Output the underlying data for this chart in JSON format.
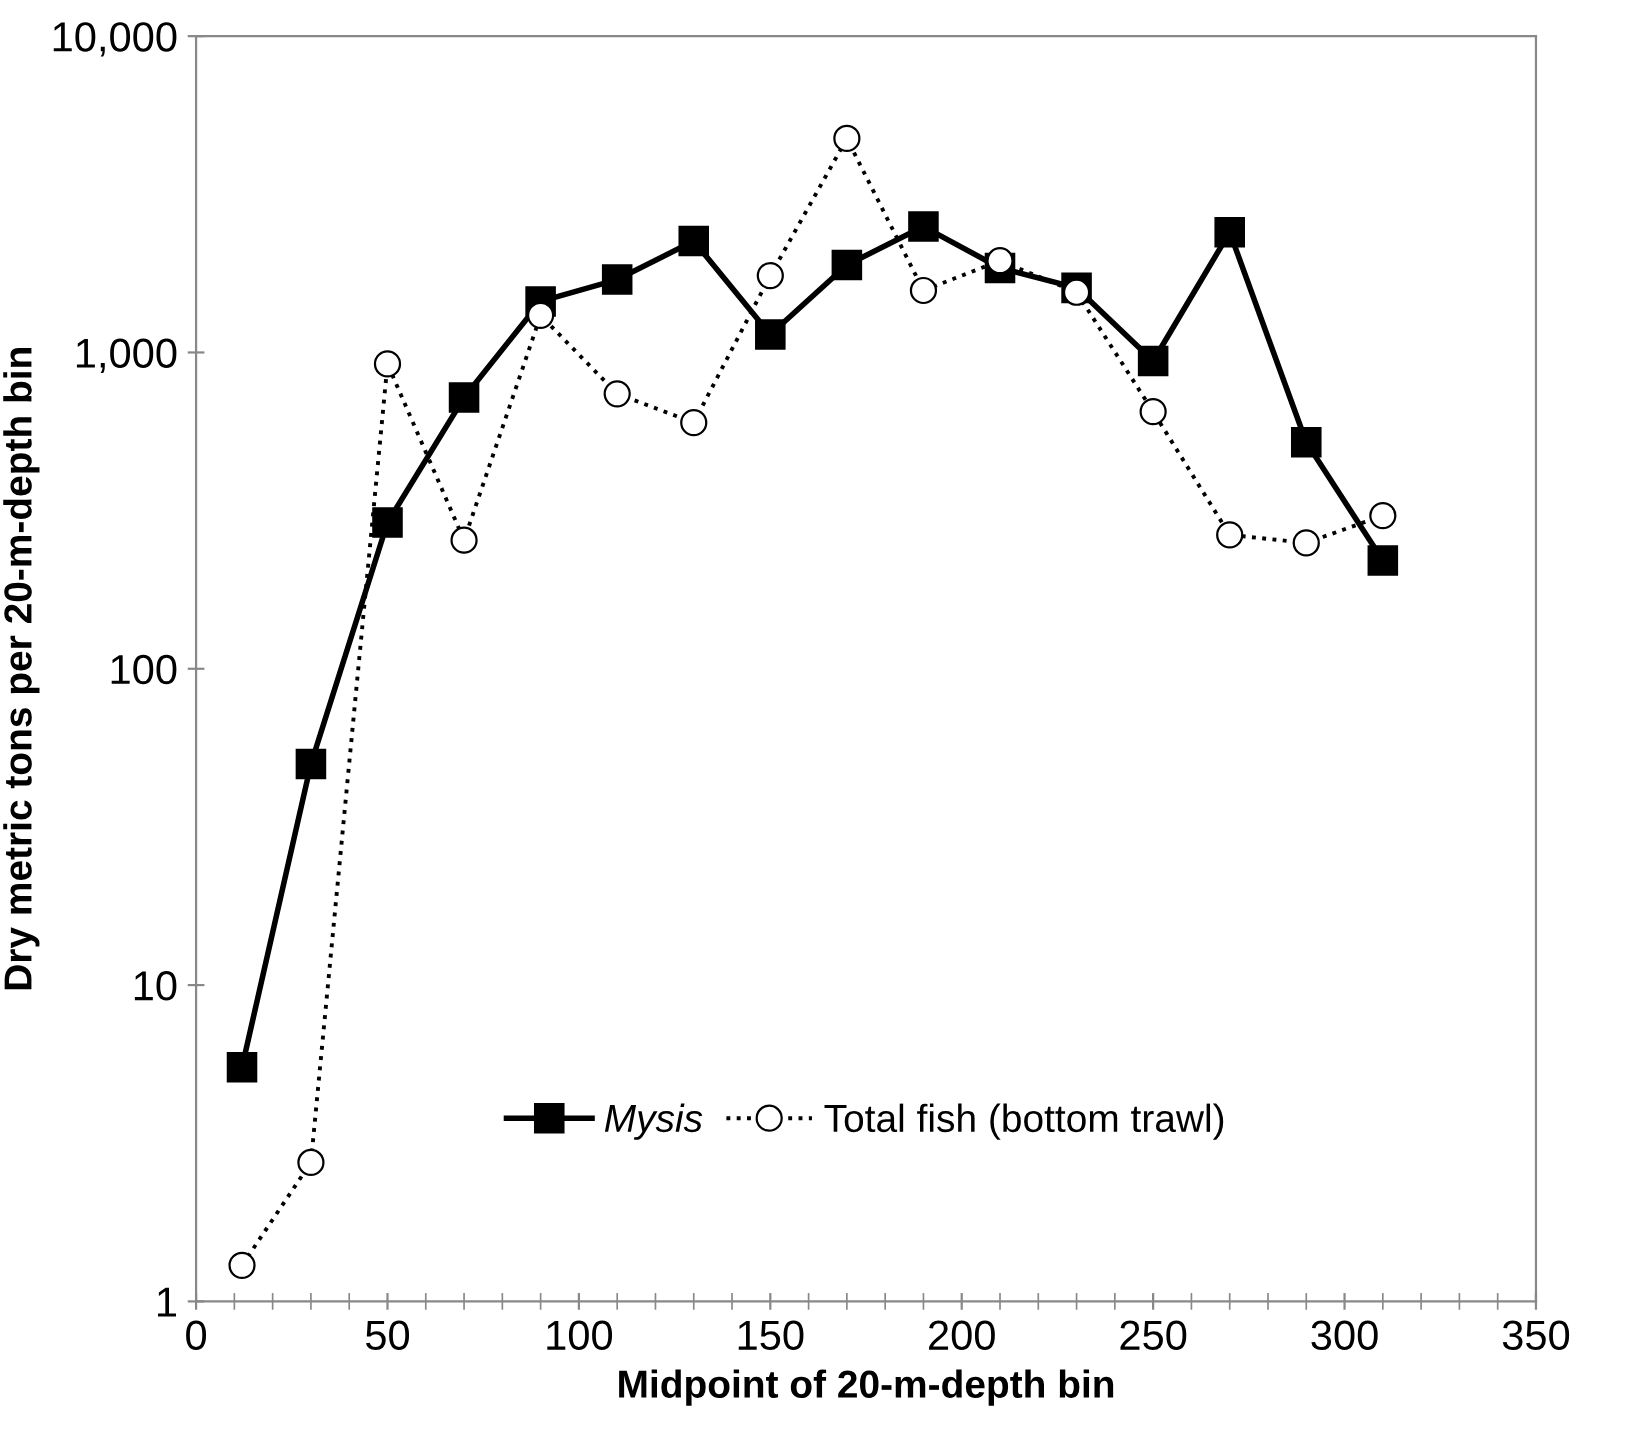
{
  "chart_data": {
    "type": "line",
    "xlabel": "Midpoint of 20-m-depth bin",
    "ylabel": "Dry metric tons per 20-m-depth bin",
    "x": [
      12,
      30,
      50,
      70,
      90,
      110,
      130,
      150,
      170,
      190,
      210,
      230,
      250,
      270,
      290,
      310
    ],
    "series": [
      {
        "name": "Mysis",
        "color": "#000000",
        "marker": "square",
        "line_style": "solid",
        "values": [
          5.5,
          50,
          290,
          720,
          1450,
          1700,
          2250,
          1140,
          1890,
          2500,
          1850,
          1600,
          940,
          2400,
          520,
          220
        ]
      },
      {
        "name": "Total fish (bottom trawl)",
        "color": "#000000",
        "marker": "circle",
        "line_style": "dotted",
        "values": [
          1.3,
          2.75,
          920,
          255,
          1310,
          740,
          600,
          1750,
          4750,
          1570,
          1950,
          1550,
          650,
          265,
          250,
          305
        ]
      }
    ],
    "log": "y",
    "xlim": [
      0,
      350
    ],
    "xticks": [
      0,
      50,
      100,
      150,
      200,
      250,
      300,
      350
    ],
    "ylim": [
      1,
      10000
    ],
    "yticks": [
      1,
      10,
      100,
      {
        "value": 1000,
        "label": "1,000"
      },
      {
        "value": 10000,
        "label": "10,000"
      }
    ],
    "grid": false,
    "legend": "bottom"
  }
}
